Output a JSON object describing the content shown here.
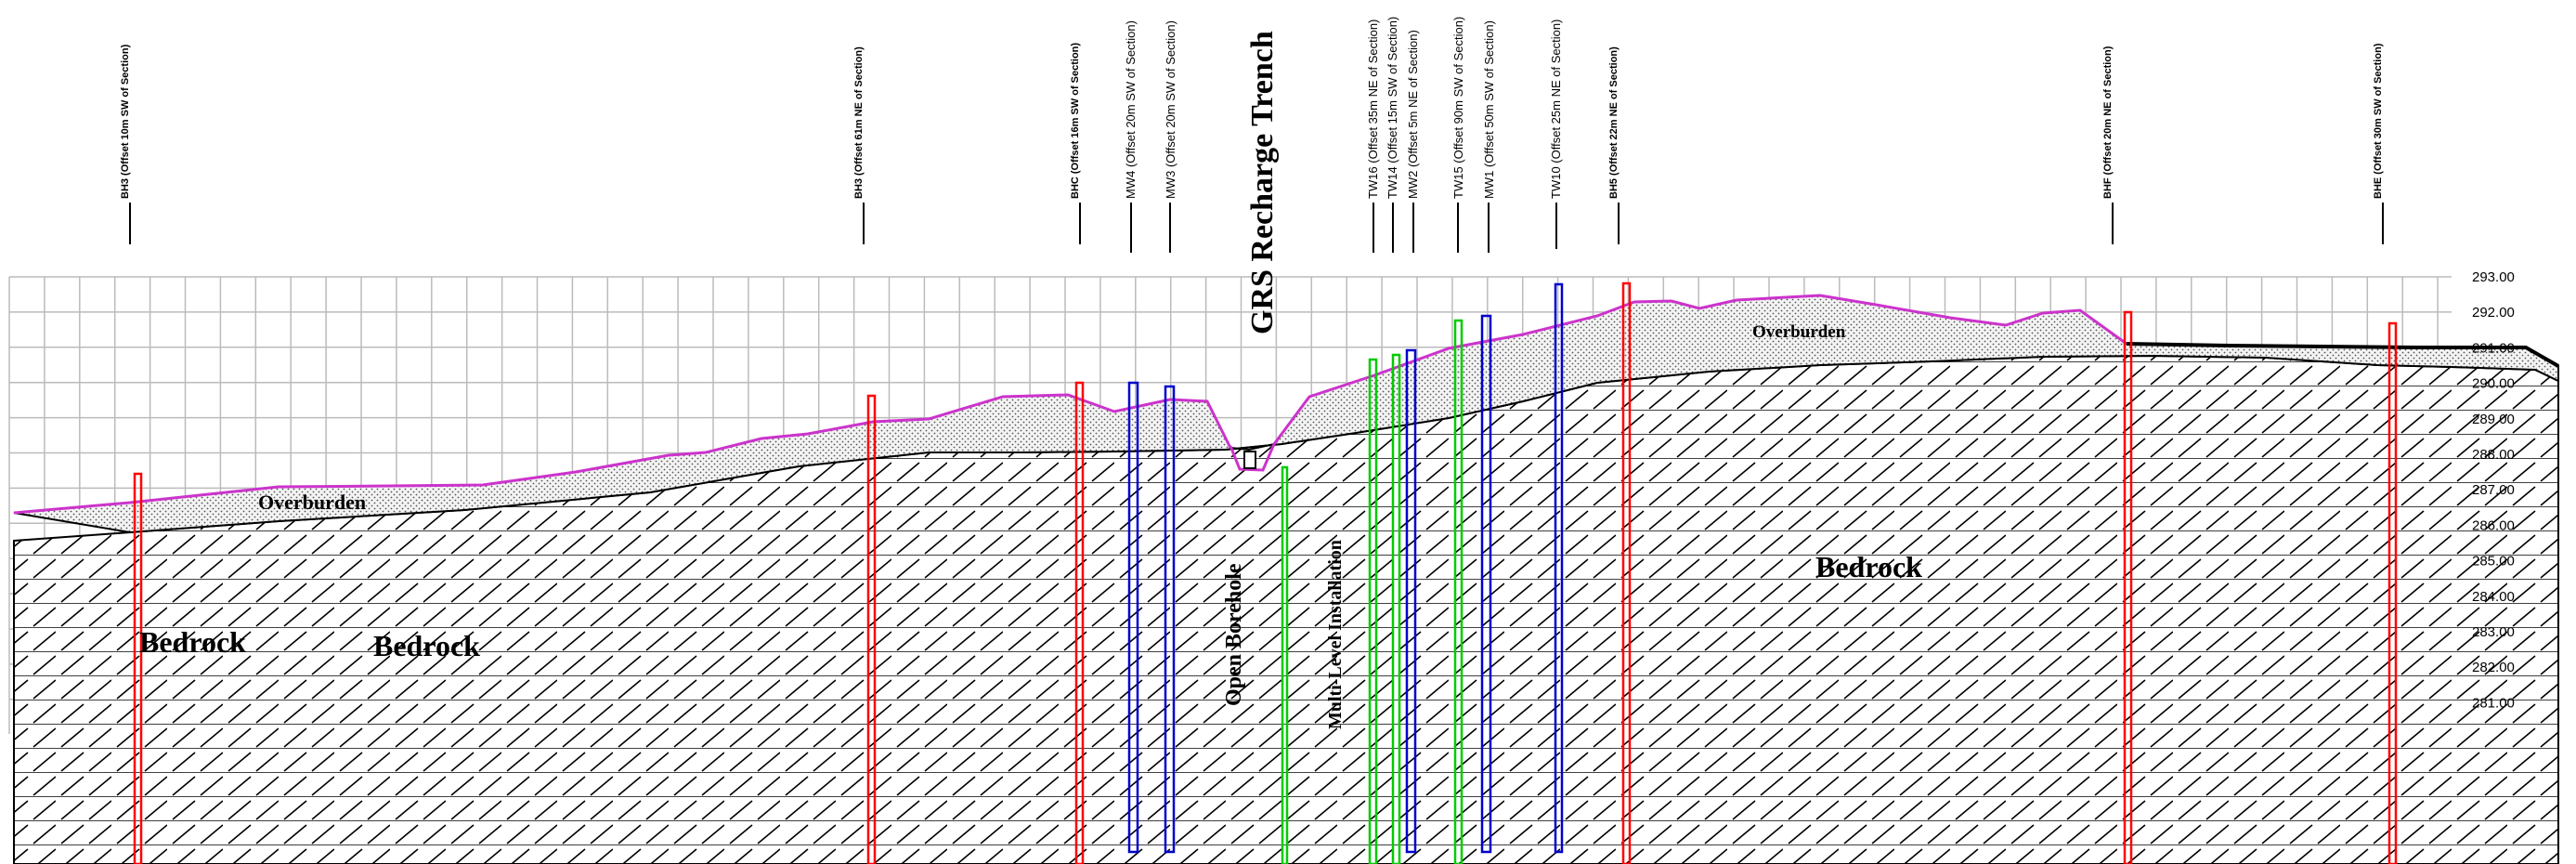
{
  "title": "GRS Recharge Trench",
  "elevation_axis": {
    "labels": [
      "293.00",
      "292.00",
      "291.00",
      "290.00",
      "289.00",
      "288.00",
      "287.00",
      "286.00",
      "285.00",
      "284.00",
      "283.00",
      "282.00",
      "281.00"
    ]
  },
  "layers": {
    "overburden_left": "Overburden",
    "overburden_right": "Overburden",
    "bedrock_1": "Bedrock",
    "bedrock_2": "Bedrock",
    "bedrock_3": "Bedrock"
  },
  "annotations": {
    "open_borehole": "Open Borehole",
    "multilevel": "Multi-Level Installation"
  },
  "borehole_labels": [
    {
      "id": "bh-a",
      "text": "BH3 (Offset 10m SW of Section)",
      "color": "#ff0000"
    },
    {
      "id": "bh-b",
      "text": "BH3 (Offset 61m NE of Section)",
      "color": "#ff0000"
    },
    {
      "id": "bh-c",
      "text": "BHC (Offset 16m SW of Section)",
      "color": "#ff0000"
    },
    {
      "id": "bh-d",
      "text": "BH5 (Offset 22m NE of Section)",
      "color": "#ff0000"
    },
    {
      "id": "bh-e",
      "text": "BHF (Offset 20m NE of Section)",
      "color": "#ff0000"
    },
    {
      "id": "bh-f",
      "text": "BHE (Offset 30m SW of Section)",
      "color": "#ff0000"
    }
  ],
  "well_labels": [
    {
      "id": "mw4",
      "text": "MW4 (Offset 20m SW of Section)",
      "color": "#0000cc"
    },
    {
      "id": "mw3",
      "text": "MW3 (Offset 20m SW of Section)",
      "color": "#0000cc"
    },
    {
      "id": "tw16",
      "text": "TW16 (Offset 35m NE of Section)",
      "color": "#00cc00"
    },
    {
      "id": "tw14",
      "text": "TW14 (Offset 15m SW of Section)",
      "color": "#00cc00"
    },
    {
      "id": "mw2",
      "text": "MW2 (Offset 5m NE of Section)",
      "color": "#0000cc"
    },
    {
      "id": "tw15",
      "text": "TW15 (Offset 90m SW of Section)",
      "color": "#00cc00"
    },
    {
      "id": "mw1",
      "text": "MW1 (Offset 50m SW of Section)",
      "color": "#0000cc"
    },
    {
      "id": "tw10",
      "text": "TW10 (Offset 25m NE of Section)",
      "color": "#0000cc"
    }
  ],
  "colors": {
    "ground_surface": "#cc33cc",
    "borehole": "#ff0000",
    "monitoring_well": "#0000cc",
    "test_well": "#00cc00",
    "grid": "#bbbbbb"
  }
}
